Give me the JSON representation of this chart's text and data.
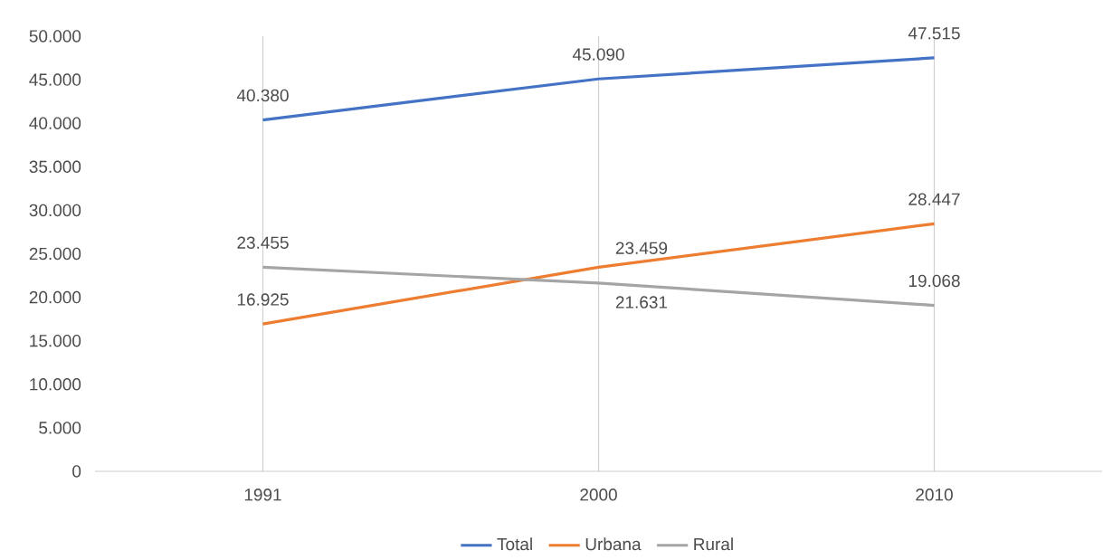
{
  "chart_data": {
    "type": "line",
    "categories": [
      "1991",
      "2000",
      "2010"
    ],
    "series": [
      {
        "name": "Total",
        "color": "#4472c4",
        "values": [
          40380,
          45090,
          47515
        ],
        "value_labels": [
          "40.380",
          "45.090",
          "47.515"
        ]
      },
      {
        "name": "Urbana",
        "color": "#ed7d31",
        "values": [
          16925,
          23459,
          28447
        ],
        "value_labels": [
          "16.925",
          "23.459",
          "28.447"
        ]
      },
      {
        "name": "Rural",
        "color": "#a5a5a5",
        "values": [
          23455,
          21631,
          19068
        ],
        "value_labels": [
          "23.455",
          "21.631",
          "19.068"
        ]
      }
    ],
    "ylim": [
      0,
      50000
    ],
    "yticks": [
      {
        "value": 0,
        "label": "0"
      },
      {
        "value": 5000,
        "label": "5.000"
      },
      {
        "value": 10000,
        "label": "10.000"
      },
      {
        "value": 15000,
        "label": "15.000"
      },
      {
        "value": 20000,
        "label": "20.000"
      },
      {
        "value": 25000,
        "label": "25.000"
      },
      {
        "value": 30000,
        "label": "30.000"
      },
      {
        "value": 35000,
        "label": "35.000"
      },
      {
        "value": 40000,
        "label": "40.000"
      },
      {
        "value": 45000,
        "label": "45.000"
      },
      {
        "value": 50000,
        "label": "50.000"
      }
    ],
    "grid": "x",
    "legend": "bottom",
    "marker": "none",
    "line_style": "solid"
  }
}
